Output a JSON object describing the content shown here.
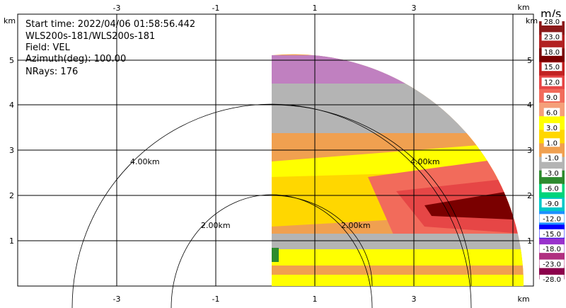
{
  "info": {
    "start_time": "Start time: 2022/04/06 01:58:56.442",
    "instrument": "WLS200s-181/WLS200s-181",
    "field": "Field: VEL",
    "azimuth": "Azimuth(deg): 100.00",
    "nrays": "NRays: 176"
  },
  "axes": {
    "unit": "km",
    "x_ticks": [
      "-3",
      "-1",
      "1",
      "3"
    ],
    "y_ticks": [
      "1",
      "2",
      "3",
      "4",
      "5"
    ],
    "range_rings": [
      "2.00km",
      "4.00km"
    ]
  },
  "colorbar": {
    "unit": "m/s",
    "labels": [
      "28.0",
      "23.0",
      "18.0",
      "15.0",
      "12.0",
      "9.0",
      "6.0",
      "3.0",
      "1.0",
      "-1.0",
      "-3.0",
      "-6.0",
      "-9.0",
      "-12.0",
      "-15.0",
      "-18.0",
      "-23.0",
      "-28.0"
    ],
    "colors": [
      "#8b1a1a",
      "#b22222",
      "#7a0000",
      "#c22222",
      "#e64646",
      "#f26b5b",
      "#f5a07a",
      "#ffff00",
      "#ffd700",
      "#f0a050",
      "#b4b4b4",
      "#2e8b2e",
      "#00d47a",
      "#00c8c8",
      "#1e90ff",
      "#0000ff",
      "#9932cc",
      "#b03080",
      "#8b004b"
    ]
  },
  "chart_data": {
    "type": "heatmap",
    "title": "",
    "xlabel": "km",
    "ylabel": "km",
    "xlim": [
      -4.2,
      4.2
    ],
    "ylim": [
      0,
      5.8
    ],
    "x_ticks": [
      -3,
      -1,
      1,
      3
    ],
    "y_ticks": [
      1,
      2,
      3,
      4,
      5
    ],
    "grid": true,
    "range_rings_km": [
      2,
      4
    ],
    "range_ring_labels": [
      "2.00km",
      "4.00km"
    ],
    "colorbar_unit": "m/s",
    "colorbar_range": [
      -28,
      28
    ],
    "azimuth_deg": 100.0,
    "nrays": 176,
    "field": "VEL"
  }
}
